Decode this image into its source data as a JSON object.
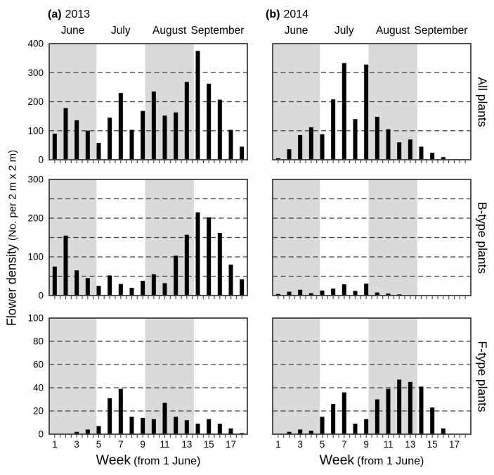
{
  "figure": {
    "panel_a": {
      "tag": "(a)",
      "year": "2013"
    },
    "panel_b": {
      "tag": "(b)",
      "year": "2014"
    },
    "months": [
      {
        "label": "June",
        "span_weeks": [
          0,
          4.29
        ],
        "shaded": true
      },
      {
        "label": "July",
        "span_weeks": [
          4.29,
          8.71
        ],
        "shaded": false
      },
      {
        "label": "August",
        "span_weeks": [
          8.71,
          13.14
        ],
        "shaded": true
      },
      {
        "label": "September",
        "span_weeks": [
          13.14,
          17.43
        ],
        "shaded": false
      }
    ],
    "row_labels": [
      "All plants",
      "B-type plants",
      "F-type plants"
    ],
    "y_axis_title": {
      "main": "Flower density",
      "sub": "(No. per 2 m x 2 m)"
    },
    "x_axis_title": {
      "main": "Week",
      "sub": "(from 1 June)"
    },
    "colors": {
      "bar": "#000000",
      "shading": "#dadada",
      "frame": "#3f3f3f",
      "gridline": "#3f3f3f",
      "text": "#000000"
    }
  },
  "chart_data": [
    {
      "type": "bar",
      "panel": "a",
      "row": 0,
      "year": "2013",
      "series_label": "All plants",
      "x_weeks": [
        1,
        2,
        3,
        4,
        5,
        6,
        7,
        8,
        9,
        10,
        11,
        12,
        13,
        14,
        15,
        16,
        17,
        18
      ],
      "values": [
        90,
        178,
        136,
        100,
        58,
        145,
        230,
        103,
        168,
        235,
        152,
        163,
        268,
        375,
        262,
        207,
        103,
        45
      ],
      "ylim": [
        0,
        400
      ],
      "yticks": [
        0,
        100,
        200,
        300,
        400
      ],
      "gridlines": [
        100,
        200,
        300
      ],
      "x_tick_labels": [
        1,
        3,
        5,
        7,
        9,
        11,
        13,
        15,
        17
      ],
      "shaded_bands": [
        "June",
        "August"
      ],
      "grid_style": "dashed"
    },
    {
      "type": "bar",
      "panel": "b",
      "row": 0,
      "year": "2014",
      "series_label": "All plants",
      "x_weeks": [
        1,
        2,
        3,
        4,
        5,
        6,
        7,
        8,
        9,
        10,
        11,
        12,
        13,
        14,
        15,
        16,
        17,
        18
      ],
      "values": [
        5,
        36,
        85,
        112,
        88,
        208,
        333,
        140,
        328,
        148,
        105,
        60,
        70,
        45,
        24,
        9,
        0,
        0
      ],
      "ylim": [
        0,
        400
      ],
      "yticks": [
        0,
        100,
        200,
        300,
        400
      ],
      "gridlines": [
        100,
        200,
        300
      ],
      "x_tick_labels": [
        1,
        3,
        5,
        7,
        9,
        11,
        13,
        15,
        17
      ],
      "shaded_bands": [
        "June",
        "August"
      ],
      "grid_style": "dashed"
    },
    {
      "type": "bar",
      "panel": "a",
      "row": 1,
      "year": "2013",
      "series_label": "B-type plants",
      "x_weeks": [
        1,
        2,
        3,
        4,
        5,
        6,
        7,
        8,
        9,
        10,
        11,
        12,
        13,
        14,
        15,
        16,
        17,
        18
      ],
      "values": [
        75,
        155,
        65,
        45,
        25,
        52,
        30,
        20,
        38,
        55,
        32,
        103,
        157,
        215,
        202,
        162,
        80,
        42
      ],
      "ylim": [
        0,
        300
      ],
      "yticks": [
        0,
        100,
        200,
        300
      ],
      "gridlines": [
        50,
        100,
        150,
        200,
        250
      ],
      "x_tick_labels": [
        1,
        3,
        5,
        7,
        9,
        11,
        13,
        15,
        17
      ],
      "shaded_bands": [
        "June",
        "August"
      ],
      "grid_style": "dashed"
    },
    {
      "type": "bar",
      "panel": "b",
      "row": 1,
      "year": "2014",
      "series_label": "B-type plants",
      "x_weeks": [
        1,
        2,
        3,
        4,
        5,
        6,
        7,
        8,
        9,
        10,
        11,
        12,
        13,
        14,
        15,
        16,
        17,
        18
      ],
      "values": [
        4,
        10,
        15,
        6,
        13,
        18,
        29,
        12,
        31,
        8,
        5,
        3,
        1,
        0,
        0,
        0,
        0,
        0
      ],
      "ylim": [
        0,
        300
      ],
      "yticks": [
        0,
        100,
        200,
        300
      ],
      "gridlines": [
        50,
        100,
        150,
        200,
        250
      ],
      "x_tick_labels": [
        1,
        3,
        5,
        7,
        9,
        11,
        13,
        15,
        17
      ],
      "shaded_bands": [
        "June",
        "August"
      ],
      "grid_style": "dashed"
    },
    {
      "type": "bar",
      "panel": "a",
      "row": 2,
      "year": "2013",
      "series_label": "F-type plants",
      "x_weeks": [
        1,
        2,
        3,
        4,
        5,
        6,
        7,
        8,
        9,
        10,
        11,
        12,
        13,
        14,
        15,
        16,
        17,
        18
      ],
      "values": [
        0,
        0,
        2,
        4,
        7,
        31,
        39,
        15,
        14,
        13,
        27,
        15,
        12,
        9,
        13,
        9,
        5,
        1
      ],
      "ylim": [
        0,
        100
      ],
      "yticks": [
        0,
        20,
        40,
        60,
        80,
        100
      ],
      "gridlines": [
        20,
        40,
        60,
        80
      ],
      "x_tick_labels": [
        1,
        3,
        5,
        7,
        9,
        11,
        13,
        15,
        17
      ],
      "shaded_bands": [
        "June",
        "August"
      ],
      "grid_style": "dashed"
    },
    {
      "type": "bar",
      "panel": "b",
      "row": 2,
      "year": "2014",
      "series_label": "F-type plants",
      "x_weeks": [
        1,
        2,
        3,
        4,
        5,
        6,
        7,
        8,
        9,
        10,
        11,
        12,
        13,
        14,
        15,
        16,
        17,
        18
      ],
      "values": [
        0,
        2,
        4,
        3,
        15,
        26,
        36,
        9,
        13,
        30,
        39,
        47,
        45,
        41,
        23,
        5,
        0,
        0
      ],
      "ylim": [
        0,
        100
      ],
      "yticks": [
        0,
        20,
        40,
        60,
        80,
        100
      ],
      "gridlines": [
        20,
        40,
        60,
        80
      ],
      "x_tick_labels": [
        1,
        3,
        5,
        7,
        9,
        11,
        13,
        15,
        17
      ],
      "shaded_bands": [
        "June",
        "August"
      ],
      "grid_style": "dashed"
    }
  ]
}
